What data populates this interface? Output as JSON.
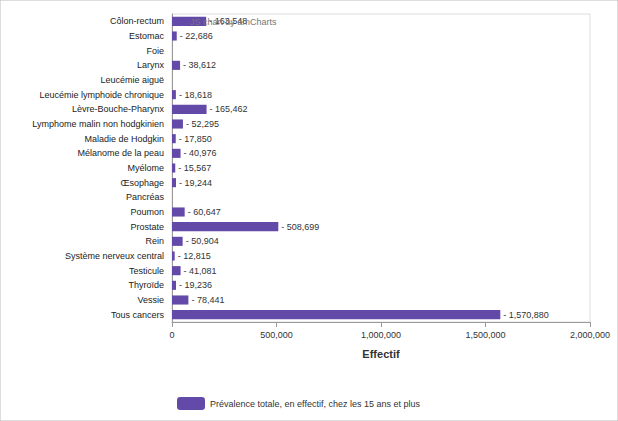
{
  "chart_data": {
    "type": "bar",
    "orientation": "horizontal",
    "categories": [
      "Côlon-rectum",
      "Estomac",
      "Foie",
      "Larynx",
      "Leucémie aiguë",
      "Leucémie lymphoide chronique",
      "Lèvre-Bouche-Pharynx",
      "Lymphome malin non hodgkinien",
      "Maladie de Hodgkin",
      "Mélanome de la peau",
      "Myélome",
      "Œsophage",
      "Pancréas",
      "Poumon",
      "Prostate",
      "Rein",
      "Système nerveux central",
      "Testicule",
      "Thyroïde",
      "Vessie",
      "Tous cancers"
    ],
    "series": [
      {
        "name": "Prévalence totale, en effectif, chez les 15 ans et plus",
        "color": "#6349a8",
        "values": [
          163548,
          22686,
          null,
          38612,
          null,
          18618,
          165462,
          52295,
          17850,
          40976,
          15567,
          19244,
          null,
          60647,
          508699,
          50904,
          12815,
          41081,
          19236,
          78441,
          1570880
        ],
        "value_labels": [
          "163,548",
          "22,686",
          null,
          "38,612",
          null,
          "18,618",
          "165,462",
          "52,295",
          "17,850",
          "40,976",
          "15,567",
          "19,244",
          null,
          "60,647",
          "508,699",
          "50,904",
          "12,815",
          "41,081",
          "19,236",
          "78,441",
          "1,570,880"
        ]
      }
    ],
    "x_label": "Effectif",
    "xlim": [
      0,
      2000000
    ],
    "xticks": [
      0,
      {
        "value": 500000,
        "label": "500,000"
      },
      {
        "value": 1000000,
        "label": "1,000,000"
      },
      {
        "value": 1500000,
        "label": "1,500,000"
      },
      {
        "value": 2000000,
        "label": "2,000,000"
      }
    ],
    "annotations": [
      "JS chart by amCharts"
    ],
    "data_labels": true,
    "legend": "bottom",
    "grid": false
  }
}
